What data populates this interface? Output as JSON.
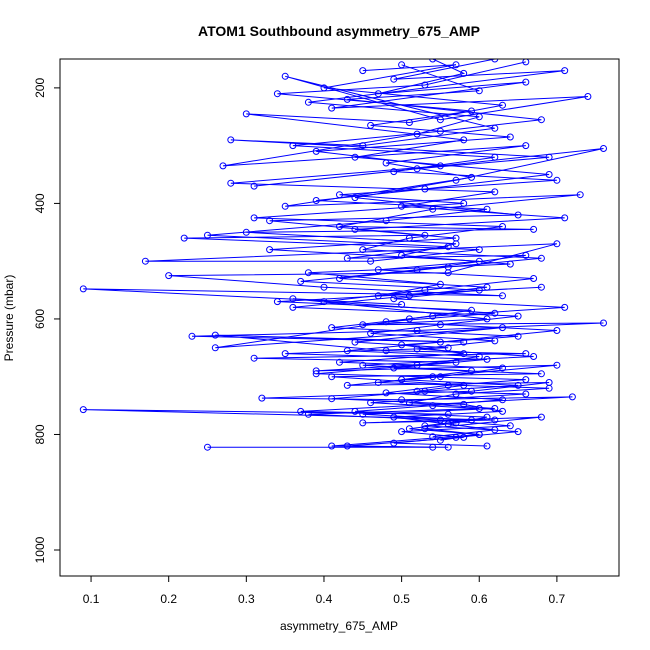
{
  "chart_data": {
    "type": "line",
    "title": "ATOM1 Southbound asymmetry_675_AMP",
    "xlabel": "asymmetry_675_AMP",
    "ylabel": "Pressure (mbar)",
    "xlim": [
      0.06,
      0.78
    ],
    "ylim": [
      1045,
      150
    ],
    "y_reversed": true,
    "x_ticks": [
      0.1,
      0.2,
      0.3,
      0.4,
      0.5,
      0.6,
      0.7
    ],
    "y_ticks": [
      200,
      400,
      600,
      800,
      1000
    ],
    "x_tick_labels": [
      "0.1",
      "0.2",
      "0.3",
      "0.4",
      "0.5",
      "0.6",
      "0.7"
    ],
    "y_tick_labels": [
      "200",
      "400",
      "600",
      "800",
      "1000"
    ],
    "grid": false,
    "legend": "none",
    "series_color": "#0000ff",
    "marker": "open-circle",
    "series": [
      {
        "points": [
          [
            0.54,
            150
          ],
          [
            0.58,
            175
          ],
          [
            0.47,
            210
          ],
          [
            0.66,
            190
          ],
          [
            0.41,
            235
          ],
          [
            0.74,
            215
          ],
          [
            0.55,
            255
          ],
          [
            0.35,
            180
          ],
          [
            0.62,
            270
          ],
          [
            0.45,
            300
          ],
          [
            0.28,
            290
          ],
          [
            0.69,
            320
          ],
          [
            0.52,
            340
          ],
          [
            0.31,
            370
          ],
          [
            0.76,
            305
          ],
          [
            0.57,
            360
          ],
          [
            0.44,
            390
          ],
          [
            0.65,
            420
          ],
          [
            0.33,
            430
          ],
          [
            0.53,
            455
          ],
          [
            0.22,
            460
          ],
          [
            0.6,
            480
          ],
          [
            0.46,
            500
          ],
          [
            0.17,
            500
          ],
          [
            0.7,
            470
          ],
          [
            0.56,
            520
          ],
          [
            0.2,
            525
          ],
          [
            0.4,
            545
          ],
          [
            0.63,
            560
          ],
          [
            0.09,
            548
          ],
          [
            0.5,
            575
          ],
          [
            0.36,
            565
          ],
          [
            0.61,
            600
          ],
          [
            0.45,
            610
          ],
          [
            0.76,
            607
          ],
          [
            0.52,
            620
          ],
          [
            0.23,
            630
          ],
          [
            0.58,
            640
          ],
          [
            0.26,
            628
          ],
          [
            0.48,
            655
          ],
          [
            0.66,
            660
          ],
          [
            0.31,
            668
          ],
          [
            0.57,
            675
          ],
          [
            0.39,
            690
          ],
          [
            0.7,
            680
          ],
          [
            0.54,
            700
          ],
          [
            0.43,
            715
          ],
          [
            0.69,
            710
          ],
          [
            0.59,
            725
          ],
          [
            0.32,
            737
          ],
          [
            0.5,
            740
          ],
          [
            0.72,
            735
          ],
          [
            0.37,
            760
          ],
          [
            0.56,
            765
          ],
          [
            0.09,
            757
          ],
          [
            0.62,
            775
          ],
          [
            0.45,
            780
          ],
          [
            0.68,
            770
          ],
          [
            0.53,
            790
          ],
          [
            0.6,
            800
          ],
          [
            0.41,
            820
          ],
          [
            0.56,
            822
          ],
          [
            0.25,
            822
          ]
        ]
      },
      {
        "points": [
          [
            0.62,
            150
          ],
          [
            0.49,
            185
          ],
          [
            0.71,
            170
          ],
          [
            0.38,
            225
          ],
          [
            0.6,
            250
          ],
          [
            0.52,
            280
          ],
          [
            0.27,
            335
          ],
          [
            0.66,
            300
          ],
          [
            0.48,
            330
          ],
          [
            0.59,
            355
          ],
          [
            0.35,
            405
          ],
          [
            0.73,
            385
          ],
          [
            0.54,
            410
          ],
          [
            0.42,
            440
          ],
          [
            0.67,
            445
          ],
          [
            0.3,
            450
          ],
          [
            0.57,
            470
          ],
          [
            0.5,
            490
          ],
          [
            0.64,
            505
          ],
          [
            0.38,
            520
          ],
          [
            0.55,
            540
          ],
          [
            0.47,
            560
          ],
          [
            0.68,
            545
          ],
          [
            0.34,
            570
          ],
          [
            0.59,
            585
          ],
          [
            0.51,
            600
          ],
          [
            0.26,
            650
          ],
          [
            0.63,
            615
          ],
          [
            0.44,
            640
          ],
          [
            0.56,
            650
          ],
          [
            0.35,
            660
          ],
          [
            0.61,
            670
          ],
          [
            0.49,
            685
          ],
          [
            0.68,
            695
          ],
          [
            0.41,
            700
          ],
          [
            0.58,
            715
          ],
          [
            0.52,
            725
          ],
          [
            0.66,
            730
          ],
          [
            0.46,
            745
          ],
          [
            0.6,
            755
          ],
          [
            0.38,
            765
          ],
          [
            0.55,
            775
          ],
          [
            0.64,
            785
          ],
          [
            0.5,
            795
          ],
          [
            0.58,
            805
          ],
          [
            0.43,
            820
          ],
          [
            0.54,
            822
          ]
        ]
      },
      {
        "points": [
          [
            0.45,
            170
          ],
          [
            0.57,
            160
          ],
          [
            0.4,
            200
          ],
          [
            0.63,
            230
          ],
          [
            0.51,
            260
          ],
          [
            0.3,
            245
          ],
          [
            0.58,
            290
          ],
          [
            0.44,
            320
          ],
          [
            0.69,
            350
          ],
          [
            0.53,
            375
          ],
          [
            0.39,
            395
          ],
          [
            0.61,
            410
          ],
          [
            0.48,
            430
          ],
          [
            0.25,
            455
          ],
          [
            0.56,
            475
          ],
          [
            0.43,
            495
          ],
          [
            0.66,
            490
          ],
          [
            0.52,
            515
          ],
          [
            0.37,
            535
          ],
          [
            0.6,
            550
          ],
          [
            0.49,
            565
          ],
          [
            0.71,
            580
          ],
          [
            0.54,
            595
          ],
          [
            0.41,
            615
          ],
          [
            0.65,
            630
          ],
          [
            0.5,
            645
          ],
          [
            0.58,
            660
          ],
          [
            0.42,
            675
          ],
          [
            0.63,
            685
          ],
          [
            0.55,
            700
          ],
          [
            0.47,
            710
          ],
          [
            0.69,
            720
          ],
          [
            0.57,
            730
          ],
          [
            0.51,
            745
          ],
          [
            0.62,
            755
          ],
          [
            0.45,
            765
          ],
          [
            0.59,
            775
          ],
          [
            0.53,
            785
          ],
          [
            0.65,
            795
          ],
          [
            0.57,
            805
          ],
          [
            0.49,
            815
          ],
          [
            0.61,
            820
          ]
        ]
      },
      {
        "points": [
          [
            0.66,
            155
          ],
          [
            0.53,
            195
          ],
          [
            0.34,
            210
          ],
          [
            0.59,
            240
          ],
          [
            0.46,
            265
          ],
          [
            0.64,
            285
          ],
          [
            0.39,
            310
          ],
          [
            0.55,
            335
          ],
          [
            0.28,
            365
          ],
          [
            0.62,
            380
          ],
          [
            0.5,
            405
          ],
          [
            0.71,
            425
          ],
          [
            0.44,
            445
          ],
          [
            0.57,
            460
          ],
          [
            0.33,
            480
          ],
          [
            0.6,
            500
          ],
          [
            0.47,
            515
          ],
          [
            0.67,
            530
          ],
          [
            0.53,
            550
          ],
          [
            0.4,
            570
          ],
          [
            0.62,
            590
          ],
          [
            0.48,
            605
          ],
          [
            0.7,
            620
          ],
          [
            0.55,
            640
          ],
          [
            0.43,
            655
          ],
          [
            0.6,
            665
          ],
          [
            0.52,
            680
          ],
          [
            0.39,
            695
          ],
          [
            0.66,
            705
          ],
          [
            0.56,
            715
          ],
          [
            0.48,
            728
          ],
          [
            0.63,
            740
          ],
          [
            0.54,
            750
          ],
          [
            0.44,
            760
          ],
          [
            0.61,
            770
          ],
          [
            0.57,
            780
          ],
          [
            0.51,
            790
          ],
          [
            0.6,
            800
          ],
          [
            0.55,
            810
          ]
        ]
      },
      {
        "points": [
          [
            0.5,
            160
          ],
          [
            0.6,
            205
          ],
          [
            0.43,
            220
          ],
          [
            0.68,
            255
          ],
          [
            0.55,
            275
          ],
          [
            0.36,
            300
          ],
          [
            0.62,
            320
          ],
          [
            0.49,
            345
          ],
          [
            0.7,
            360
          ],
          [
            0.42,
            385
          ],
          [
            0.58,
            400
          ],
          [
            0.31,
            425
          ],
          [
            0.63,
            440
          ],
          [
            0.51,
            460
          ],
          [
            0.45,
            480
          ],
          [
            0.68,
            495
          ],
          [
            0.56,
            510
          ],
          [
            0.42,
            530
          ],
          [
            0.61,
            545
          ],
          [
            0.51,
            560
          ],
          [
            0.36,
            580
          ],
          [
            0.65,
            595
          ],
          [
            0.55,
            610
          ],
          [
            0.46,
            625
          ],
          [
            0.62,
            638
          ],
          [
            0.52,
            652
          ],
          [
            0.67,
            665
          ],
          [
            0.45,
            680
          ],
          [
            0.59,
            690
          ],
          [
            0.5,
            705
          ],
          [
            0.65,
            715
          ],
          [
            0.53,
            725
          ],
          [
            0.41,
            738
          ],
          [
            0.58,
            748
          ],
          [
            0.63,
            760
          ],
          [
            0.49,
            770
          ],
          [
            0.56,
            782
          ],
          [
            0.62,
            792
          ],
          [
            0.54,
            804
          ]
        ]
      }
    ]
  }
}
